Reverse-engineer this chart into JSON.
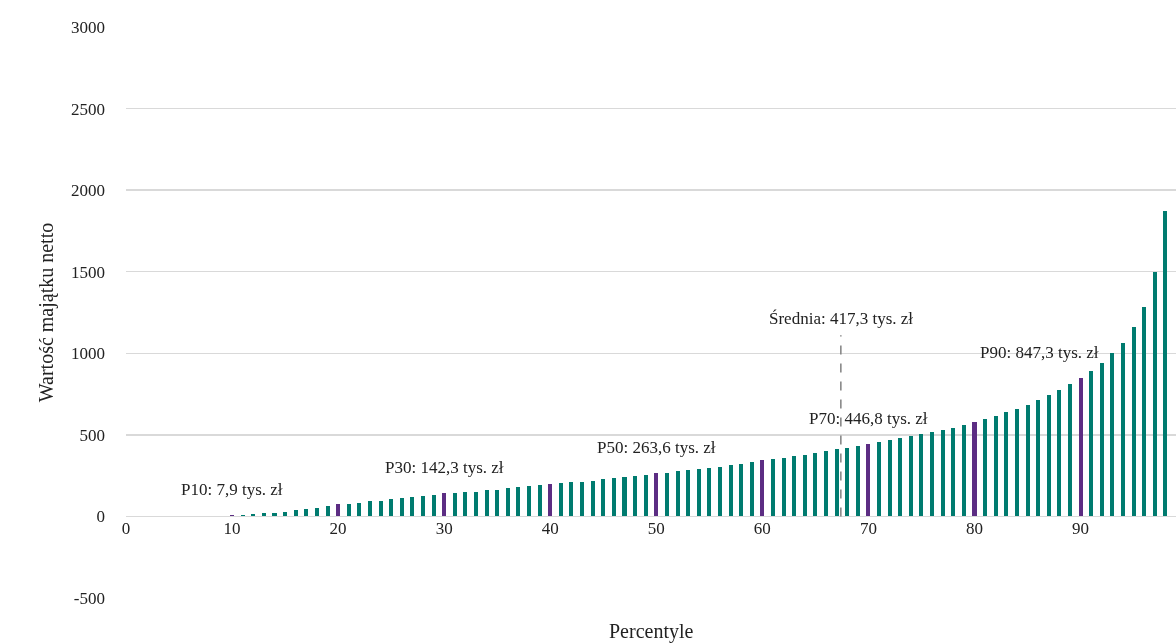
{
  "chart_data": {
    "type": "bar",
    "xlabel": "Percentyle",
    "ylabel": "Wartość majątku netto",
    "x": [
      1,
      2,
      3,
      4,
      5,
      6,
      7,
      8,
      9,
      10,
      11,
      12,
      13,
      14,
      15,
      16,
      17,
      18,
      19,
      20,
      21,
      22,
      23,
      24,
      25,
      26,
      27,
      28,
      29,
      30,
      31,
      32,
      33,
      34,
      35,
      36,
      37,
      38,
      39,
      40,
      41,
      42,
      43,
      44,
      45,
      46,
      47,
      48,
      49,
      50,
      51,
      52,
      53,
      54,
      55,
      56,
      57,
      58,
      59,
      60,
      61,
      62,
      63,
      64,
      65,
      66,
      67,
      68,
      69,
      70,
      71,
      72,
      73,
      74,
      75,
      76,
      77,
      78,
      79,
      80,
      81,
      82,
      83,
      84,
      85,
      86,
      87,
      88,
      89,
      90,
      91,
      92,
      93,
      94,
      95,
      96,
      97,
      98
    ],
    "values": [
      0,
      0,
      0,
      0,
      0,
      0,
      0,
      0,
      0,
      7.9,
      10,
      12,
      18,
      22,
      30,
      39,
      47,
      53,
      61,
      75,
      79,
      85,
      95,
      97,
      106,
      112,
      120,
      124,
      130,
      142.3,
      145,
      148,
      152,
      159,
      165,
      173,
      179,
      185,
      192,
      198,
      202,
      208,
      214,
      220,
      227,
      233,
      239,
      245,
      251,
      263.6,
      268,
      276,
      284,
      293,
      299,
      305,
      313,
      323,
      332,
      346,
      352,
      361,
      369,
      379,
      389,
      400,
      412,
      420,
      433,
      446.8,
      455,
      468,
      480,
      490,
      505,
      517,
      529,
      544,
      562,
      581,
      597,
      616,
      641,
      659,
      684,
      715,
      744,
      773,
      810,
      847.3,
      890,
      941,
      1003,
      1063,
      1164,
      1285,
      1498,
      1870
    ],
    "colors": [
      "#007b6f",
      "#007b6f",
      "#007b6f",
      "#007b6f",
      "#007b6f",
      "#007b6f",
      "#007b6f",
      "#007b6f",
      "#007b6f",
      "#5c2d83",
      "#007b6f",
      "#007b6f",
      "#007b6f",
      "#007b6f",
      "#007b6f",
      "#007b6f",
      "#007b6f",
      "#007b6f",
      "#007b6f",
      "#5c2d83",
      "#007b6f",
      "#007b6f",
      "#007b6f",
      "#007b6f",
      "#007b6f",
      "#007b6f",
      "#007b6f",
      "#007b6f",
      "#007b6f",
      "#5c2d83",
      "#007b6f",
      "#007b6f",
      "#007b6f",
      "#007b6f",
      "#007b6f",
      "#007b6f",
      "#007b6f",
      "#007b6f",
      "#007b6f",
      "#5c2d83",
      "#007b6f",
      "#007b6f",
      "#007b6f",
      "#007b6f",
      "#007b6f",
      "#007b6f",
      "#007b6f",
      "#007b6f",
      "#007b6f",
      "#5c2d83",
      "#007b6f",
      "#007b6f",
      "#007b6f",
      "#007b6f",
      "#007b6f",
      "#007b6f",
      "#007b6f",
      "#007b6f",
      "#007b6f",
      "#5c2d83",
      "#007b6f",
      "#007b6f",
      "#007b6f",
      "#007b6f",
      "#007b6f",
      "#007b6f",
      "#007b6f",
      "#007b6f",
      "#007b6f",
      "#5c2d83",
      "#007b6f",
      "#007b6f",
      "#007b6f",
      "#007b6f",
      "#007b6f",
      "#007b6f",
      "#007b6f",
      "#007b6f",
      "#007b6f",
      "#5c2d83",
      "#007b6f",
      "#007b6f",
      "#007b6f",
      "#007b6f",
      "#007b6f",
      "#007b6f",
      "#007b6f",
      "#007b6f",
      "#007b6f",
      "#5c2d83",
      "#007b6f",
      "#007b6f",
      "#007b6f",
      "#007b6f",
      "#007b6f",
      "#007b6f",
      "#007b6f",
      "#007b6f"
    ],
    "xlim": [
      0,
      99
    ],
    "xticks": [
      0,
      10,
      20,
      30,
      40,
      50,
      60,
      70,
      80,
      90
    ],
    "ylim": [
      -500,
      3000
    ],
    "yticks": [
      -500,
      0,
      500,
      1000,
      1500,
      2000,
      2500,
      3000
    ],
    "grid": "y",
    "ref_lines": [
      {
        "axis": "x",
        "value": 67.4,
        "color": "#808080",
        "line_style": "dashed"
      }
    ],
    "annotations": [
      "Średnia: 417,3 tys. zł",
      {
        "text": "P10: 7,9 tys. zł",
        "x": 10,
        "y": 7.9
      },
      {
        "text": "P30: 142,3 tys. zł",
        "x": 30,
        "y": 142.3
      },
      {
        "text": "P50: 263,6 tys. zł",
        "x": 50,
        "y": 263.6
      },
      {
        "text": "P70: 446,8 tys. zł",
        "x": 70,
        "y": 446.8
      },
      {
        "text": "P90: 847,3 tys. zł",
        "x": 90,
        "y": 847.3
      }
    ]
  }
}
